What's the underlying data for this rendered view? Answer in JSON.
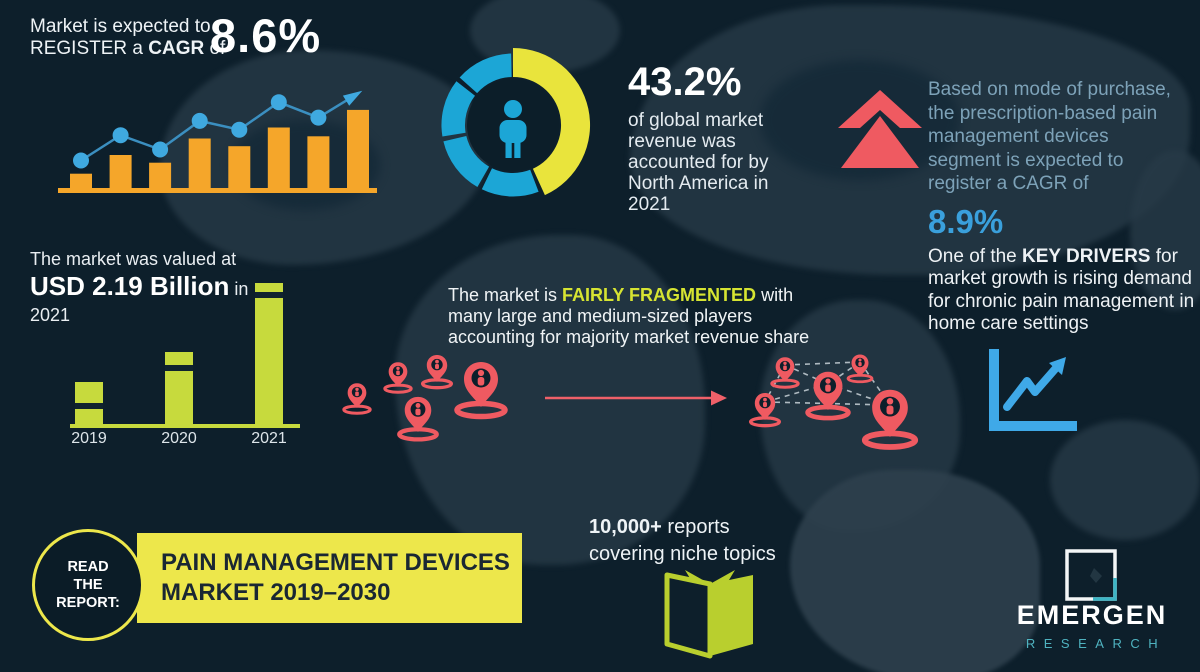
{
  "colors": {
    "background": "#0d1f2b",
    "map_silhouette": "#273a47",
    "orange": "#f5a62a",
    "dot_blue": "#3fa9e0",
    "donut_blue": "#1ca6d6",
    "donut_yellow": "#e9e43c",
    "coral_red": "#ef5a61",
    "lime_green": "#c7da3d",
    "banner_yellow": "#ede74b",
    "steel_blue_text": "#7da2b8",
    "bright_blue": "#3aa0dc",
    "logo_teal": "#4fb3c0"
  },
  "growth_stat": {
    "line1": "Market is expected to",
    "line2_pre": "REGISTER a ",
    "line2_bold": "CAGR",
    "line2_post": " of",
    "value": "8.6%"
  },
  "north_america": {
    "value": "43.2%",
    "description": "of global market revenue was accounted for by North America in 2021"
  },
  "prescription_segment": {
    "text": "Based on mode of purchase, the prescription-based pain management devices segment is expected to register a CAGR of",
    "value": "8.9%"
  },
  "key_drivers": {
    "pre": "One of the ",
    "bold": "KEY DRIVERS",
    "post": " for market growth is rising demand for chronic pain management in home care settings"
  },
  "valuation": {
    "line1": "The market was valued at",
    "value_bold": "USD 2.19 Billion",
    "suffix": " in",
    "year": "2021"
  },
  "fragmentation": {
    "pre": "The market is ",
    "highlight": "FAIRLY FRAGMENTED",
    "post": " with many large and medium-sized players accounting for majority market revenue share"
  },
  "report_badge": {
    "text": "READ THE REPORT:"
  },
  "report_banner": {
    "title": "PAIN MANAGEMENT DEVICES MARKET 2019–2030"
  },
  "reports_note": {
    "bold": "10,000+",
    "rest": " reports covering niche topics"
  },
  "brand": {
    "name": "EMERGEN",
    "tagline": "RESEARCH"
  },
  "chart_data": [
    {
      "id": "cagr-growth-trend",
      "type": "bar",
      "title": "Market is expected to REGISTER a CAGR of 8.6% (illustrative growth bars with rising trend line)",
      "categories": [
        "1",
        "2",
        "3",
        "4",
        "5",
        "6",
        "7",
        "8"
      ],
      "values": [
        13,
        30,
        23,
        45,
        38,
        55,
        47,
        71
      ],
      "trend_line": [
        25,
        48,
        35,
        61,
        53,
        78,
        64,
        86
      ],
      "ylim": [
        0,
        100
      ],
      "unit": "relative (unlabeled illustration, values estimated from pixels)",
      "legend": "off",
      "grid": "off"
    },
    {
      "id": "north-america-share",
      "type": "pie",
      "donut": true,
      "title": "43.2% of global market revenue was accounted for by North America in 2021",
      "slices": [
        {
          "label": "North America",
          "value": 43.2,
          "color": "#e9e43c"
        },
        {
          "label": "Rest of world",
          "value": 56.8,
          "color": "#1ca6d6"
        }
      ],
      "center_icon": "person"
    },
    {
      "id": "market-value",
      "type": "bar",
      "title": "The market was valued at USD 2.19 Billion in 2021",
      "categories": [
        "2019",
        "2020",
        "2021"
      ],
      "values": [
        0.65,
        1.12,
        2.19
      ],
      "ylabel": "USD Billion",
      "labeled_value": "2021 = USD 2.19 Billion (2019 and 2020 estimated from bar heights)",
      "grid": "off"
    }
  ]
}
